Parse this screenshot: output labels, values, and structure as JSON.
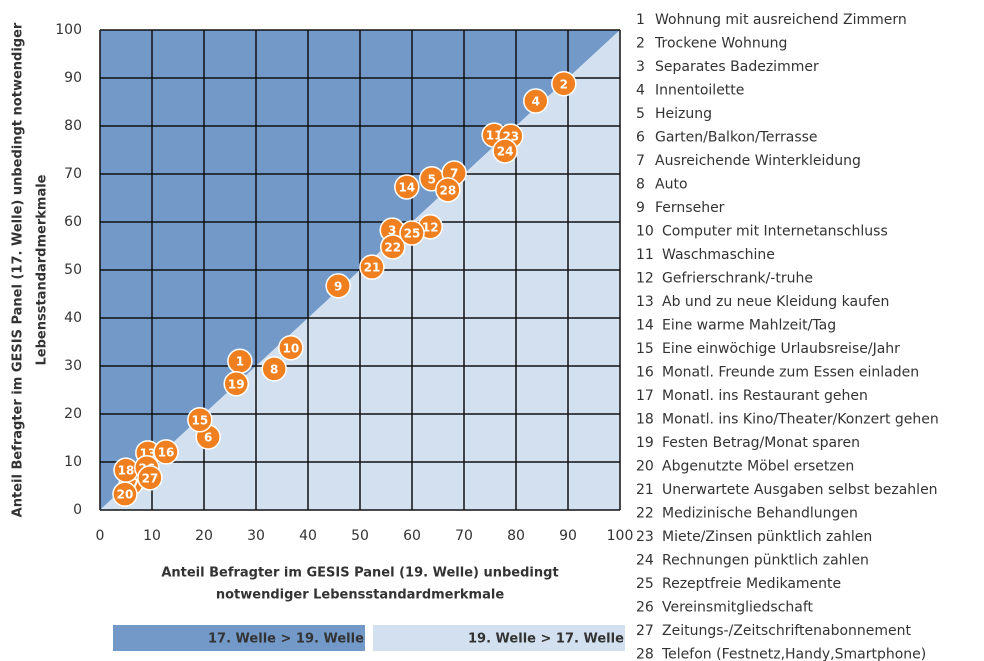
{
  "chart_data": {
    "type": "scatter",
    "xlabel": [
      "Anteil Befragter im GESIS Panel (19. Welle) unbedingt",
      "notwendiger Lebensstandardmerkmale"
    ],
    "ylabel": [
      "Anteil Befragter im GESIS  Panel (17. Welle) unbedingt notwendiger",
      "Lebensstandardmerkmale"
    ],
    "xlim": [
      0,
      100
    ],
    "ylim": [
      0,
      100
    ],
    "xticks": [
      0,
      10,
      20,
      30,
      40,
      50,
      60,
      70,
      80,
      90,
      100
    ],
    "yticks": [
      0,
      10,
      20,
      30,
      40,
      50,
      60,
      70,
      80,
      90,
      100
    ],
    "grid": true,
    "regions": [
      {
        "name": "17. Welle > 19. Welle",
        "color": "#7299c7"
      },
      {
        "name": "19. Welle > 17. Welle",
        "color": "#d3e0ef"
      }
    ],
    "series": [
      {
        "color": "#f07f1f",
        "labels": [
          1,
          2,
          3,
          4,
          5,
          6,
          7,
          8,
          9,
          10,
          11,
          12,
          13,
          14,
          15,
          16,
          17,
          18,
          19,
          20,
          21,
          22,
          23,
          24,
          25,
          26,
          27,
          28
        ],
        "x": [
          26.9,
          89.2,
          56.2,
          83.8,
          63.8,
          20.8,
          68.1,
          33.5,
          45.8,
          36.7,
          75.8,
          63.5,
          9.2,
          59.0,
          19.2,
          12.7,
          6.0,
          5.0,
          26.2,
          4.8,
          52.3,
          56.3,
          79.0,
          77.9,
          60.0,
          9.0,
          9.6,
          66.9
        ],
        "values": [
          31.0,
          88.8,
          58.3,
          85.2,
          69.0,
          15.2,
          70.2,
          29.4,
          46.7,
          33.8,
          78.1,
          59.0,
          11.9,
          67.3,
          18.8,
          12.1,
          5.6,
          8.3,
          26.3,
          3.3,
          50.6,
          54.8,
          77.9,
          74.8,
          57.7,
          8.8,
          6.7,
          66.7
        ]
      }
    ],
    "categories": [
      "Wohnung mit ausreichend Zimmern",
      "Trockene Wohnung",
      "Separates Badezimmer",
      "Innentoilette",
      "Heizung",
      "Garten/Balkon/Terrasse",
      "Ausreichende Winterkleidung",
      "Auto",
      "Fernseher",
      "Computer mit Internetanschluss",
      "Waschmaschine",
      "Gefrierschrank/-truhe",
      "Ab und zu neue Kleidung kaufen",
      "Eine warme Mahlzeit/Tag",
      "Eine einwöchige Urlaubsreise/Jahr",
      "Monatl. Freunde zum Essen einladen",
      "Monatl. ins Restaurant gehen",
      "Monatl. ins Kino/Theater/Konzert gehen",
      "Festen Betrag/Monat sparen",
      "Abgenutzte Möbel ersetzen",
      "Unerwartete Ausgaben selbst bezahlen",
      "Medizinische Behandlungen",
      "Miete/Zinsen pünktlich zahlen",
      "Rechnungen pünktlich zahlen",
      "Rezeptfreie Medikamente",
      "Vereinsmitgliedschaft",
      "Zeitungs-/Zeitschriftenabonnement",
      "Telefon (Festnetz,Handy,Smartphone)"
    ]
  }
}
